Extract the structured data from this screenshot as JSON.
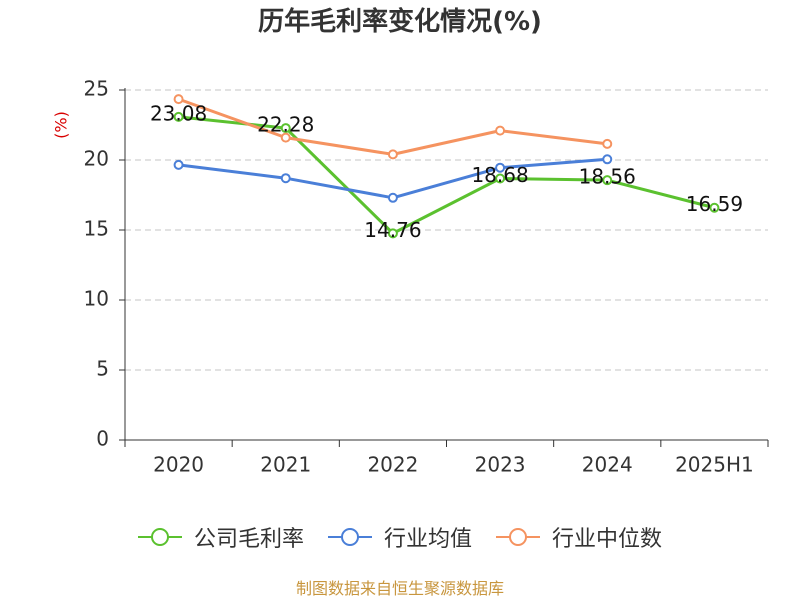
{
  "chart_data": {
    "type": "line",
    "title": "历年毛利率变化情况(%)",
    "xlabel": "",
    "ylabel": "(%)",
    "ylabel_color": "#d90000",
    "categories": [
      "2020",
      "2021",
      "2022",
      "2023",
      "2024",
      "2025H1"
    ],
    "ylim": [
      0,
      25
    ],
    "yticks": [
      0,
      5,
      10,
      15,
      20,
      25
    ],
    "grid": true,
    "legend_position": "bottom",
    "series": [
      {
        "name": "公司毛利率",
        "color": "#5bc12f",
        "show_labels": true,
        "values": [
          23.08,
          22.28,
          14.76,
          18.68,
          18.56,
          16.59
        ]
      },
      {
        "name": "行业均值",
        "color": "#4a7fd8",
        "show_labels": false,
        "values": [
          19.65,
          18.7,
          17.3,
          19.45,
          20.05,
          null
        ]
      },
      {
        "name": "行业中位数",
        "color": "#f59360",
        "show_labels": false,
        "values": [
          24.35,
          21.6,
          20.4,
          22.1,
          21.15,
          null
        ]
      }
    ]
  },
  "footer": {
    "source_note": "制图数据来自恒生聚源数据库",
    "color": "#c8963e"
  }
}
